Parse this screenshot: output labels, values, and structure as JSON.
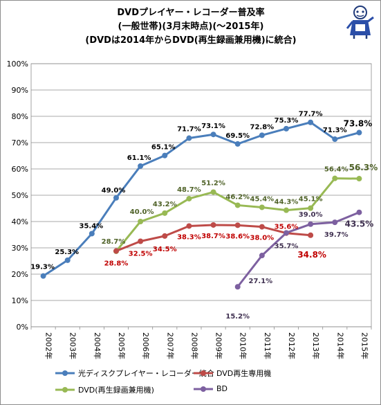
{
  "title_lines": [
    "DVDプレイヤー・レコーダー普及率",
    "(一般世帯)(3月末時点)(〜2015年)",
    "(DVDは2014年からDVD(再生録画兼用機)に統合)"
  ],
  "colors": {
    "optical": "#4a7ebb",
    "dvd_play": "#be4b48",
    "dvd_rec": "#98b954",
    "bd": "#7d60a0",
    "label_optical": "#000000",
    "label_dvd_play": "#c00000",
    "label_dvd_rec": "#4f6228",
    "label_bd": "#403151"
  },
  "chart_data": {
    "type": "line",
    "categories": [
      "2002年",
      "2003年",
      "2004年",
      "2005年",
      "2006年",
      "2007年",
      "2008年",
      "2009年",
      "2010年",
      "2011年",
      "2012年",
      "2013年",
      "2014年",
      "2015年"
    ],
    "ylim": [
      0,
      100
    ],
    "yticks": [
      "0%",
      "10%",
      "20%",
      "30%",
      "40%",
      "50%",
      "60%",
      "70%",
      "80%",
      "90%",
      "100%"
    ],
    "grid": true,
    "legend_position": "bottom",
    "series": [
      {
        "key": "optical",
        "name": "光ディスクプレイヤー・レコーダー統合",
        "values": [
          19.3,
          25.3,
          35.4,
          49.0,
          61.1,
          65.1,
          71.7,
          73.1,
          69.5,
          72.8,
          75.3,
          77.7,
          71.3,
          73.8
        ],
        "labels": [
          "19.3%",
          "25.3%",
          "35.4%",
          "49.0%",
          "61.1%",
          "65.1%",
          "71.7%",
          "73.1%",
          "69.5%",
          "72.8%",
          "75.3%",
          "77.7%",
          "71.3%",
          "73.8%"
        ]
      },
      {
        "key": "dvd_play",
        "name": "DVD再生専用機",
        "values": [
          null,
          null,
          null,
          28.8,
          32.5,
          34.5,
          38.3,
          38.7,
          38.6,
          38.0,
          35.6,
          34.8,
          null,
          null
        ],
        "labels": [
          "",
          "",
          "",
          "28.8%",
          "32.5%",
          "34.5%",
          "38.3%",
          "38.7%",
          "38.6%",
          "38.0%",
          "35.6%",
          "34.8%",
          "",
          ""
        ]
      },
      {
        "key": "dvd_rec",
        "name": "DVD(再生録画兼用機)",
        "values": [
          null,
          null,
          null,
          28.7,
          40.0,
          43.2,
          48.7,
          51.2,
          46.2,
          45.4,
          44.3,
          45.1,
          56.4,
          56.3
        ],
        "labels": [
          "",
          "",
          "",
          "28.7%",
          "40.0%",
          "43.2%",
          "48.7%",
          "51.2%",
          "46.2%",
          "45.4%",
          "44.3%",
          "45.1%",
          "56.4%",
          "56.3%"
        ]
      },
      {
        "key": "bd",
        "name": "BD",
        "values": [
          null,
          null,
          null,
          null,
          null,
          null,
          null,
          null,
          15.2,
          27.1,
          35.7,
          39.0,
          39.7,
          43.5
        ],
        "labels": [
          "",
          "",
          "",
          "",
          "",
          "",
          "",
          "",
          "15.2%",
          "27.1%",
          "35.7%",
          "39.0%",
          "39.7%",
          "43.5%"
        ]
      }
    ]
  }
}
